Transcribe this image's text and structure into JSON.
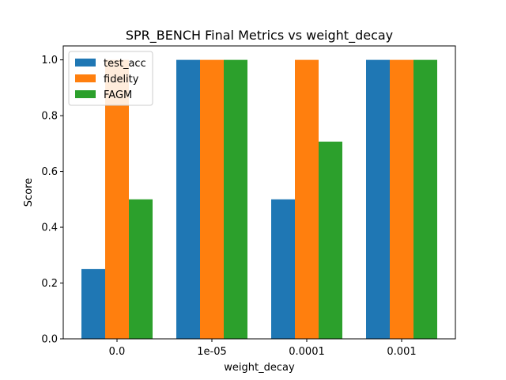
{
  "chart_data": {
    "type": "bar",
    "title": "SPR_BENCH Final Metrics vs weight_decay",
    "xlabel": "weight_decay",
    "ylabel": "Score",
    "categories": [
      "0.0",
      "1e-05",
      "0.0001",
      "0.001"
    ],
    "series": [
      {
        "name": "test_acc",
        "color": "#1f77b4",
        "values": [
          0.25,
          1.0,
          0.5,
          1.0
        ]
      },
      {
        "name": "fidelity",
        "color": "#ff7f0e",
        "values": [
          1.0,
          1.0,
          1.0,
          1.0
        ]
      },
      {
        "name": "FAGM",
        "color": "#2ca02c",
        "values": [
          0.5,
          1.0,
          0.707,
          1.0
        ]
      }
    ],
    "ylim": [
      0,
      1.05
    ],
    "yticks": [
      0.0,
      0.2,
      0.4,
      0.6,
      0.8,
      1.0
    ],
    "ytick_labels": [
      "0.0",
      "0.2",
      "0.4",
      "0.6",
      "0.8",
      "1.0"
    ],
    "grid": false,
    "legend_position": "top-left"
  }
}
